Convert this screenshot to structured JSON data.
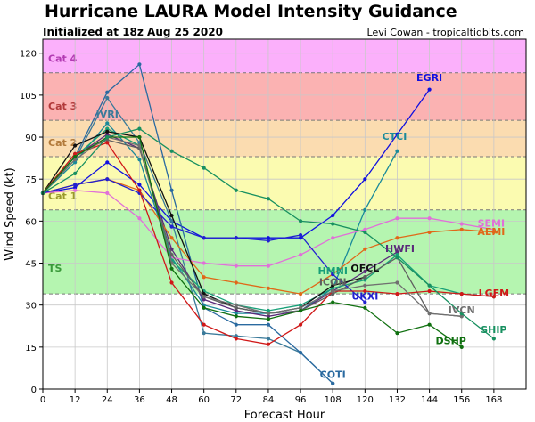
{
  "header": {
    "title": "Hurricane LAURA Model Intensity Guidance",
    "subtitle": "Initialized at 18z Aug 25 2020",
    "credit": "Levi Cowan - tropicaltidbits.com"
  },
  "chart_data": {
    "type": "line",
    "xlabel": "Forecast Hour",
    "ylabel": "Wind Speed (kt)",
    "xlim": [
      0,
      180
    ],
    "ylim": [
      0,
      125
    ],
    "xticks": [
      0,
      12,
      24,
      36,
      48,
      60,
      72,
      84,
      96,
      108,
      120,
      132,
      144,
      156,
      168
    ],
    "yticks": [
      0,
      15,
      30,
      45,
      60,
      75,
      90,
      105,
      120
    ],
    "grid": true,
    "bands": [
      {
        "label": "TS",
        "from": 34,
        "to": 64,
        "color": "#b5f5b0"
      },
      {
        "label": "Cat 1",
        "from": 64,
        "to": 83,
        "color": "#fbfbb0"
      },
      {
        "label": "Cat 2",
        "from": 83,
        "to": 96,
        "color": "#fbdcb0"
      },
      {
        "label": "Cat 3",
        "from": 96,
        "to": 113,
        "color": "#fbb2b2"
      },
      {
        "label": "Cat 4",
        "from": 113,
        "to": 125,
        "color": "#fbb0fb"
      }
    ],
    "band_label_colors": {
      "TS": "#3a9a3a",
      "Cat 1": "#9a9a2a",
      "Cat 2": "#b27a3a",
      "Cat 3": "#b23a3a",
      "Cat 4": "#b23ab2"
    },
    "series": [
      {
        "name": "EGRI",
        "color": "#1010e0",
        "x": [
          0,
          12,
          24,
          36,
          48,
          60,
          72,
          84,
          96,
          108,
          120,
          132,
          144
        ],
        "y": [
          70,
          72,
          81,
          73,
          60,
          54,
          54,
          54,
          54,
          62,
          75,
          91,
          107
        ]
      },
      {
        "name": "CTCI",
        "color": "#1a8a9a",
        "x": [
          0,
          12,
          24,
          36,
          48,
          60,
          72,
          84,
          96,
          108,
          120,
          132
        ],
        "y": [
          70,
          81,
          95,
          82,
          47,
          30,
          27,
          27,
          28,
          36,
          64,
          85
        ]
      },
      {
        "name": "IVRI",
        "color": "#3a7a9a",
        "x": [
          0,
          12,
          24,
          36,
          48,
          60,
          72,
          84,
          96,
          108,
          120
        ],
        "y": [
          70,
          82,
          104,
          88,
          60,
          20,
          19,
          18,
          13,
          2,
          null
        ]
      },
      {
        "name": "COTI",
        "color": "#2a6aa0",
        "x": [
          0,
          12,
          24,
          36,
          48,
          60,
          72,
          84,
          96,
          108
        ],
        "y": [
          70,
          83,
          106,
          116,
          71,
          29,
          23,
          23,
          13,
          2
        ]
      },
      {
        "name": "HWFI",
        "color": "#5a2a7a",
        "x": [
          0,
          12,
          24,
          36,
          48,
          60,
          72,
          84,
          96,
          108,
          120,
          132
        ],
        "y": [
          70,
          83,
          91,
          86,
          50,
          32,
          28,
          26,
          28,
          35,
          42,
          49
        ]
      },
      {
        "name": "SEMI",
        "color": "#e070d8",
        "x": [
          0,
          12,
          24,
          36,
          48,
          60,
          72,
          84,
          96,
          108,
          120,
          132,
          144,
          156,
          168
        ],
        "y": [
          70,
          71,
          70,
          61,
          47,
          45,
          44,
          44,
          48,
          54,
          57,
          61,
          61,
          59,
          57
        ]
      },
      {
        "name": "AEMI",
        "color": "#e06818",
        "x": [
          0,
          12,
          24,
          36,
          48,
          60,
          72,
          84,
          96,
          108,
          120,
          132,
          144,
          156,
          168
        ],
        "y": [
          70,
          73,
          75,
          71,
          54,
          40,
          38,
          36,
          34,
          41,
          50,
          54,
          56,
          57,
          56
        ]
      },
      {
        "name": "HMNI",
        "color": "#18a078",
        "x": [
          0,
          12,
          24,
          36,
          48,
          60,
          72,
          84,
          96,
          108,
          120,
          132,
          144,
          156,
          168
        ],
        "y": [
          70,
          83,
          93,
          87,
          46,
          35,
          30,
          28,
          30,
          36,
          39,
          48,
          37,
          34,
          33
        ]
      },
      {
        "name": "OFCL",
        "color": "#101010",
        "x": [
          0,
          12,
          24,
          36,
          48,
          60,
          72,
          84,
          96,
          108,
          120
        ],
        "y": [
          70,
          87,
          92,
          90,
          62,
          34,
          29,
          27,
          29,
          37,
          40
        ]
      },
      {
        "name": "ICON",
        "color": "#606060",
        "x": [
          0,
          12,
          24,
          36,
          48,
          60,
          72,
          84,
          96,
          108,
          120,
          132,
          144,
          156
        ],
        "y": [
          70,
          84,
          89,
          86,
          48,
          33,
          29,
          27,
          28,
          34,
          40,
          47,
          27,
          26
        ]
      },
      {
        "name": "UKXI",
        "color": "#2020d0",
        "x": [
          0,
          12,
          24,
          36,
          48,
          60,
          72,
          84,
          96,
          108,
          120
        ],
        "y": [
          70,
          73,
          75,
          70,
          58,
          54,
          54,
          53,
          55,
          41,
          31
        ]
      },
      {
        "name": "LGEM",
        "color": "#d01818",
        "x": [
          0,
          12,
          24,
          36,
          48,
          60,
          72,
          84,
          96,
          108,
          120,
          132,
          144,
          156,
          168
        ],
        "y": [
          70,
          84,
          88,
          71,
          38,
          23,
          18,
          16,
          23,
          35,
          35,
          34,
          35,
          34,
          33
        ]
      },
      {
        "name": "IVCN",
        "color": "#707070",
        "x": [
          0,
          12,
          24,
          36,
          48,
          60,
          72,
          84,
          96,
          108,
          120,
          132,
          144,
          156
        ],
        "y": [
          70,
          82,
          90,
          87,
          45,
          33,
          30,
          27,
          29,
          35,
          37,
          38,
          27,
          26
        ]
      },
      {
        "name": "DSHP",
        "color": "#107010",
        "x": [
          0,
          12,
          24,
          36,
          48,
          60,
          72,
          84,
          96,
          108,
          120,
          132,
          144,
          156
        ],
        "y": [
          70,
          83,
          90,
          90,
          43,
          29,
          26,
          25,
          28,
          31,
          29,
          20,
          23,
          15
        ]
      },
      {
        "name": "SHIP",
        "color": "#189060",
        "x": [
          0,
          12,
          24,
          36,
          48,
          60,
          72,
          84,
          96,
          108,
          120,
          132,
          144,
          156,
          168
        ],
        "y": [
          70,
          77,
          90,
          93,
          85,
          79,
          71,
          68,
          60,
          59,
          56,
          47,
          37,
          27,
          18
        ]
      }
    ],
    "series_labels": [
      {
        "name": "EGRI",
        "x": 144,
        "y": 110
      },
      {
        "name": "CTCI",
        "x": 131,
        "y": 89
      },
      {
        "name": "IVRI",
        "x": 24,
        "y": 97
      },
      {
        "name": "HWFI",
        "x": 133,
        "y": 49
      },
      {
        "name": "SEMI",
        "x": 167,
        "y": 58
      },
      {
        "name": "AEMI",
        "x": 167,
        "y": 55
      },
      {
        "name": "HMNI",
        "x": 108,
        "y": 41
      },
      {
        "name": "OFCL",
        "x": 120,
        "y": 42
      },
      {
        "name": "ICON",
        "x": 108,
        "y": 37
      },
      {
        "name": "UKXI",
        "x": 120,
        "y": 32
      },
      {
        "name": "LGEM",
        "x": 168,
        "y": 33
      },
      {
        "name": "IVCN",
        "x": 156,
        "y": 27
      },
      {
        "name": "DSHP",
        "x": 152,
        "y": 16
      },
      {
        "name": "SHIP",
        "x": 168,
        "y": 20
      },
      {
        "name": "COTI",
        "x": 108,
        "y": 4
      }
    ]
  }
}
